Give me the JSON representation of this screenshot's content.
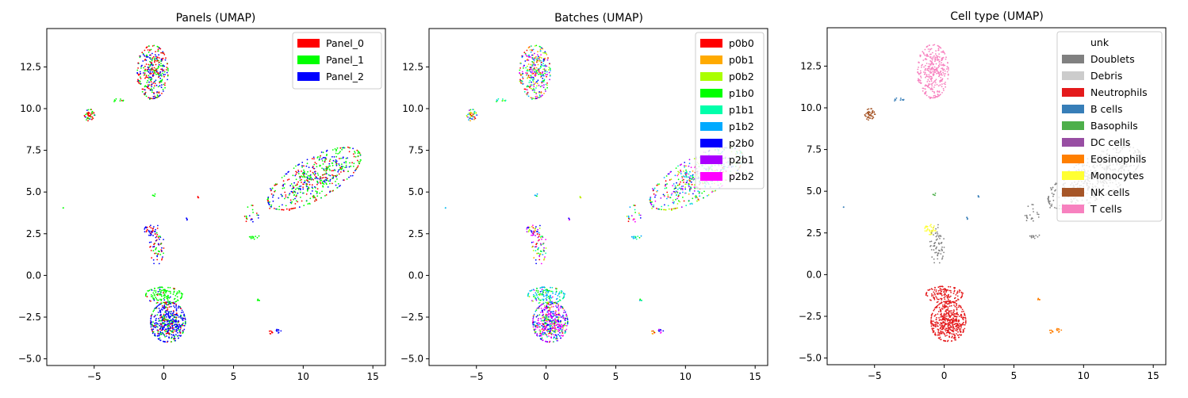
{
  "figure": {
    "background": "#ffffff"
  },
  "chart_data": [
    {
      "type": "scatter",
      "title": "Panels (UMAP)",
      "xlabel": "",
      "ylabel": "",
      "xlim": [
        -8.4,
        15.9
      ],
      "ylim": [
        -5.4,
        14.8
      ],
      "xticks": [
        -5,
        0,
        5,
        10,
        15
      ],
      "yticks": [
        -5.0,
        -2.5,
        0.0,
        2.5,
        5.0,
        7.5,
        10.0,
        12.5
      ],
      "xtick_labels": [
        "−5",
        "0",
        "5",
        "10",
        "15"
      ],
      "ytick_labels": [
        "−5.0",
        "−2.5",
        "0.0",
        "2.5",
        "5.0",
        "7.5",
        "10.0",
        "12.5"
      ],
      "grid": false,
      "legend_position": "top-right",
      "series": [
        {
          "name": "Panel_0",
          "color": "#ff0000"
        },
        {
          "name": "Panel_1",
          "color": "#00ff00"
        },
        {
          "name": "Panel_2",
          "color": "#0000ff"
        }
      ]
    },
    {
      "type": "scatter",
      "title": "Batches (UMAP)",
      "xlabel": "",
      "ylabel": "",
      "xlim": [
        -8.4,
        15.9
      ],
      "ylim": [
        -5.4,
        14.8
      ],
      "xticks": [
        -5,
        0,
        5,
        10,
        15
      ],
      "yticks": [
        -5.0,
        -2.5,
        0.0,
        2.5,
        5.0,
        7.5,
        10.0,
        12.5
      ],
      "xtick_labels": [
        "−5",
        "0",
        "5",
        "10",
        "15"
      ],
      "ytick_labels": [
        "−5.0",
        "−2.5",
        "0.0",
        "2.5",
        "5.0",
        "7.5",
        "10.0",
        "12.5"
      ],
      "grid": false,
      "legend_position": "top-right",
      "series": [
        {
          "name": "p0b0",
          "color": "#ff0000"
        },
        {
          "name": "p0b1",
          "color": "#ffaa00"
        },
        {
          "name": "p0b2",
          "color": "#aaff00"
        },
        {
          "name": "p1b0",
          "color": "#00ff00"
        },
        {
          "name": "p1b1",
          "color": "#00ffaa"
        },
        {
          "name": "p1b2",
          "color": "#00aaff"
        },
        {
          "name": "p2b0",
          "color": "#0000ff"
        },
        {
          "name": "p2b1",
          "color": "#aa00ff"
        },
        {
          "name": "p2b2",
          "color": "#ff00ff"
        }
      ]
    },
    {
      "type": "scatter",
      "title": "Cell type (UMAP)",
      "xlabel": "",
      "ylabel": "",
      "xlim": [
        -8.4,
        15.9
      ],
      "ylim": [
        -5.4,
        14.8
      ],
      "xticks": [
        -5,
        0,
        5,
        10,
        15
      ],
      "yticks": [
        -5.0,
        -2.5,
        0.0,
        2.5,
        5.0,
        7.5,
        10.0,
        12.5
      ],
      "xtick_labels": [
        "−5",
        "0",
        "5",
        "10",
        "15"
      ],
      "ytick_labels": [
        "−5.0",
        "−2.5",
        "0.0",
        "2.5",
        "5.0",
        "7.5",
        "10.0",
        "12.5"
      ],
      "grid": false,
      "legend_position": "top-right",
      "series": [
        {
          "name": "unk",
          "color": "#ffffff"
        },
        {
          "name": "Doublets",
          "color": "#808080"
        },
        {
          "name": "Debris",
          "color": "#cccccc"
        },
        {
          "name": "Neutrophils",
          "color": "#e41a1c"
        },
        {
          "name": "B cells",
          "color": "#377eb8"
        },
        {
          "name": "Basophils",
          "color": "#4daf4a"
        },
        {
          "name": "DC cells",
          "color": "#984ea3"
        },
        {
          "name": "Eosinophils",
          "color": "#ff7f00"
        },
        {
          "name": "Monocytes",
          "color": "#ffff33"
        },
        {
          "name": "NK cells",
          "color": "#a65628"
        },
        {
          "name": "T cells",
          "color": "#f781bf"
        }
      ]
    }
  ],
  "clusters": [
    {
      "cx": -0.8,
      "cy": 12.2,
      "rx": 1.1,
      "ry": 1.6,
      "n": 340,
      "tilt": 0
    },
    {
      "cx": 10.8,
      "cy": 5.8,
      "rx": 3.6,
      "ry": 1.25,
      "n": 520,
      "tilt": 0.42
    },
    {
      "cx": 0.3,
      "cy": -2.8,
      "rx": 1.25,
      "ry": 1.2,
      "n": 480,
      "tilt": 0
    },
    {
      "cx": 0.0,
      "cy": -1.2,
      "rx": 1.3,
      "ry": 0.5,
      "n": 140,
      "tilt": 0
    },
    {
      "cx": -5.3,
      "cy": 9.6,
      "rx": 0.4,
      "ry": 0.35,
      "n": 45,
      "tilt": 0
    },
    {
      "cx": -0.5,
      "cy": 1.8,
      "rx": 0.5,
      "ry": 1.2,
      "n": 70,
      "tilt": 0
    },
    {
      "cx": -1.0,
      "cy": 2.7,
      "rx": 0.4,
      "ry": 0.3,
      "n": 30,
      "tilt": 0
    },
    {
      "cx": 6.5,
      "cy": 2.3,
      "rx": 0.35,
      "ry": 0.15,
      "n": 12,
      "tilt": 0
    },
    {
      "cx": 6.3,
      "cy": 3.6,
      "rx": 0.5,
      "ry": 0.6,
      "n": 20,
      "tilt": 0
    },
    {
      "cx": 7.7,
      "cy": -3.4,
      "rx": 0.15,
      "ry": 0.1,
      "n": 8,
      "tilt": 0
    },
    {
      "cx": 8.2,
      "cy": -3.3,
      "rx": 0.2,
      "ry": 0.15,
      "n": 10,
      "tilt": 0
    },
    {
      "cx": 6.8,
      "cy": -1.5,
      "rx": 0.15,
      "ry": 0.1,
      "n": 6,
      "tilt": 0
    },
    {
      "cx": -3.3,
      "cy": 10.5,
      "rx": 0.4,
      "ry": 0.1,
      "n": 10,
      "tilt": 0
    },
    {
      "cx": -0.7,
      "cy": 4.8,
      "rx": 0.1,
      "ry": 0.1,
      "n": 5,
      "tilt": 0
    },
    {
      "cx": 1.6,
      "cy": 3.4,
      "rx": 0.1,
      "ry": 0.1,
      "n": 4,
      "tilt": 0
    },
    {
      "cx": 2.4,
      "cy": 4.7,
      "rx": 0.1,
      "ry": 0.1,
      "n": 3,
      "tilt": 0
    },
    {
      "cx": -7.2,
      "cy": 4.0,
      "rx": 0.05,
      "ry": 0.05,
      "n": 2,
      "tilt": 0
    }
  ],
  "celltype_cluster_colors": [
    "#f781bf",
    "#808080",
    "#e41a1c",
    "#e41a1c",
    "#a65628",
    "#808080",
    "#ffff33",
    "#808080",
    "#808080",
    "#ff7f00",
    "#ff7f00",
    "#ff7f00",
    "#377eb8",
    "#4daf4a",
    "#377eb8",
    "#377eb8",
    "#377eb8"
  ],
  "panel_cluster_mix": [
    [
      0.4,
      0.3,
      0.3
    ],
    [
      0.25,
      0.45,
      0.3
    ],
    [
      0.15,
      0.2,
      0.65
    ],
    [
      0.1,
      0.85,
      0.05
    ],
    [
      0.6,
      0.3,
      0.1
    ],
    [
      0.4,
      0.2,
      0.4
    ],
    [
      0.3,
      0.0,
      0.7
    ],
    [
      0.0,
      1.0,
      0.0
    ],
    [
      0.3,
      0.3,
      0.4
    ],
    [
      1.0,
      0.0,
      0.0
    ],
    [
      0.0,
      0.0,
      1.0
    ],
    [
      0.0,
      1.0,
      0.0
    ],
    [
      0.2,
      0.8,
      0.0
    ],
    [
      0.0,
      1.0,
      0.0
    ],
    [
      0.0,
      0.0,
      1.0
    ],
    [
      1.0,
      0.0,
      0.0
    ],
    [
      0.0,
      1.0,
      0.0
    ]
  ]
}
